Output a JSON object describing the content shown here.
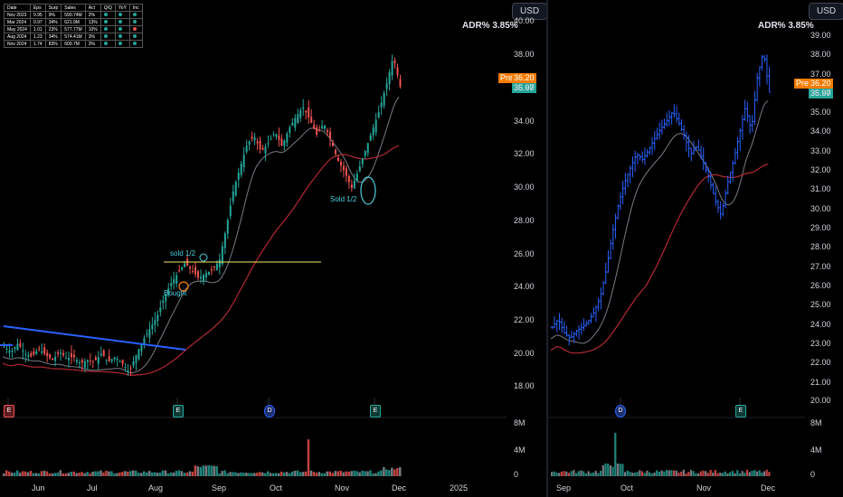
{
  "left_pane": {
    "usd_button": "USD",
    "adr_label": "ADR%",
    "adr_value": "3.85%",
    "pre_label": "Pre",
    "pre_price": "36.20",
    "last_price": "35.97",
    "price_ticks": [
      "40.00",
      "38.00",
      "36.00",
      "34.00",
      "32.00",
      "30.00",
      "28.00",
      "26.00",
      "24.00",
      "22.00",
      "20.00",
      "18.00"
    ],
    "volume_ticks": [
      "8M",
      "4M",
      "0"
    ],
    "time_labels": [
      "Jun",
      "Jul",
      "Aug",
      "Sep",
      "Oct",
      "Nov",
      "Dec",
      "2025"
    ],
    "annotations": {
      "bought": "Bought",
      "sold_half_1": "sold 1/2",
      "sold_half_2": "Sold 1/2"
    },
    "earnings_badges": [
      "E",
      "E",
      "D",
      "E"
    ],
    "stats_table": {
      "headers": [
        "Date",
        "Eps",
        "Surp",
        "Sales",
        "Act",
        "Q/Q",
        "YoY",
        "Inc"
      ],
      "rows": [
        [
          "Nov 2023",
          "0.95",
          "9%",
          "590.74M",
          "2%"
        ],
        [
          "Mar 2024",
          "0.97",
          "34%",
          "621.9M",
          "13%"
        ],
        [
          "May 2024",
          "1.01",
          "23%",
          "577.77M",
          "10%"
        ],
        [
          "Aug 2024",
          "1.23",
          "34%",
          "574.41M",
          "3%"
        ],
        [
          "Nov 2024",
          "1.74",
          "83%",
          "609.7M",
          "3%"
        ]
      ]
    }
  },
  "right_pane": {
    "usd_button": "USD",
    "adr_label": "ADR%",
    "adr_value": "3.85%",
    "pre_label": "Pre",
    "pre_price": "36.20",
    "last_price": "35.97",
    "price_ticks": [
      "39.00",
      "38.00",
      "37.00",
      "36.00",
      "35.00",
      "34.00",
      "33.00",
      "32.00",
      "31.00",
      "30.00",
      "29.00",
      "28.00",
      "27.00",
      "26.00",
      "25.00",
      "24.00",
      "23.00",
      "22.00",
      "21.00",
      "20.00"
    ],
    "volume_ticks": [
      "8M",
      "4M",
      "0"
    ],
    "time_labels": [
      "Sep",
      "Oct",
      "Nov",
      "Dec"
    ],
    "earnings_badges": [
      "D",
      "E"
    ]
  },
  "colors": {
    "up": "#26a69a",
    "down": "#ef5350",
    "ma_fast": "#787b86",
    "ma_slow": "#b22833",
    "trend": "#2962ff",
    "level": "#f5e663",
    "right_bars": "#2962ff"
  },
  "chart_data": [
    {
      "type": "candlestick",
      "title": "",
      "x_range": [
        "Jun",
        "2025"
      ],
      "ylim": [
        18,
        40
      ],
      "annotations": [
        "Bought",
        "sold 1/2",
        "Sold 1/2"
      ],
      "price_path": [
        20.4,
        20.1,
        20.6,
        20.0,
        19.8,
        20.3,
        19.9,
        19.6,
        20.1,
        19.7,
        19.8,
        19.4,
        19.6,
        19.5,
        20.0,
        19.5,
        19.8,
        19.4,
        18.9,
        19.9,
        20.8,
        21.5,
        22.2,
        23.3,
        24.2,
        24.8,
        25.4,
        25.0,
        24.5,
        24.8,
        25.0,
        25.6,
        27.6,
        29.8,
        31.2,
        32.6,
        33.0,
        32.1,
        32.6,
        33.3,
        32.4,
        33.5,
        34.2,
        34.8,
        34.0,
        33.1,
        33.8,
        32.8,
        31.6,
        30.9,
        29.9,
        31.0,
        32.2,
        33.4,
        34.6,
        36.1,
        37.8,
        36.0
      ]
    },
    {
      "type": "ohlc",
      "title": "",
      "x_range": [
        "Sep",
        "Dec"
      ],
      "ylim": [
        20,
        39
      ],
      "price_path": [
        23.8,
        24.2,
        23.5,
        23.2,
        23.6,
        23.8,
        24.1,
        24.6,
        25.4,
        26.8,
        28.7,
        30.2,
        31.3,
        32.1,
        32.8,
        32.5,
        33.0,
        33.6,
        34.1,
        34.5,
        35.0,
        34.4,
        33.6,
        32.8,
        33.2,
        32.4,
        31.5,
        30.4,
        29.6,
        31.2,
        32.4,
        33.8,
        35.2,
        34.0,
        36.8,
        38.1,
        36.0
      ]
    }
  ]
}
